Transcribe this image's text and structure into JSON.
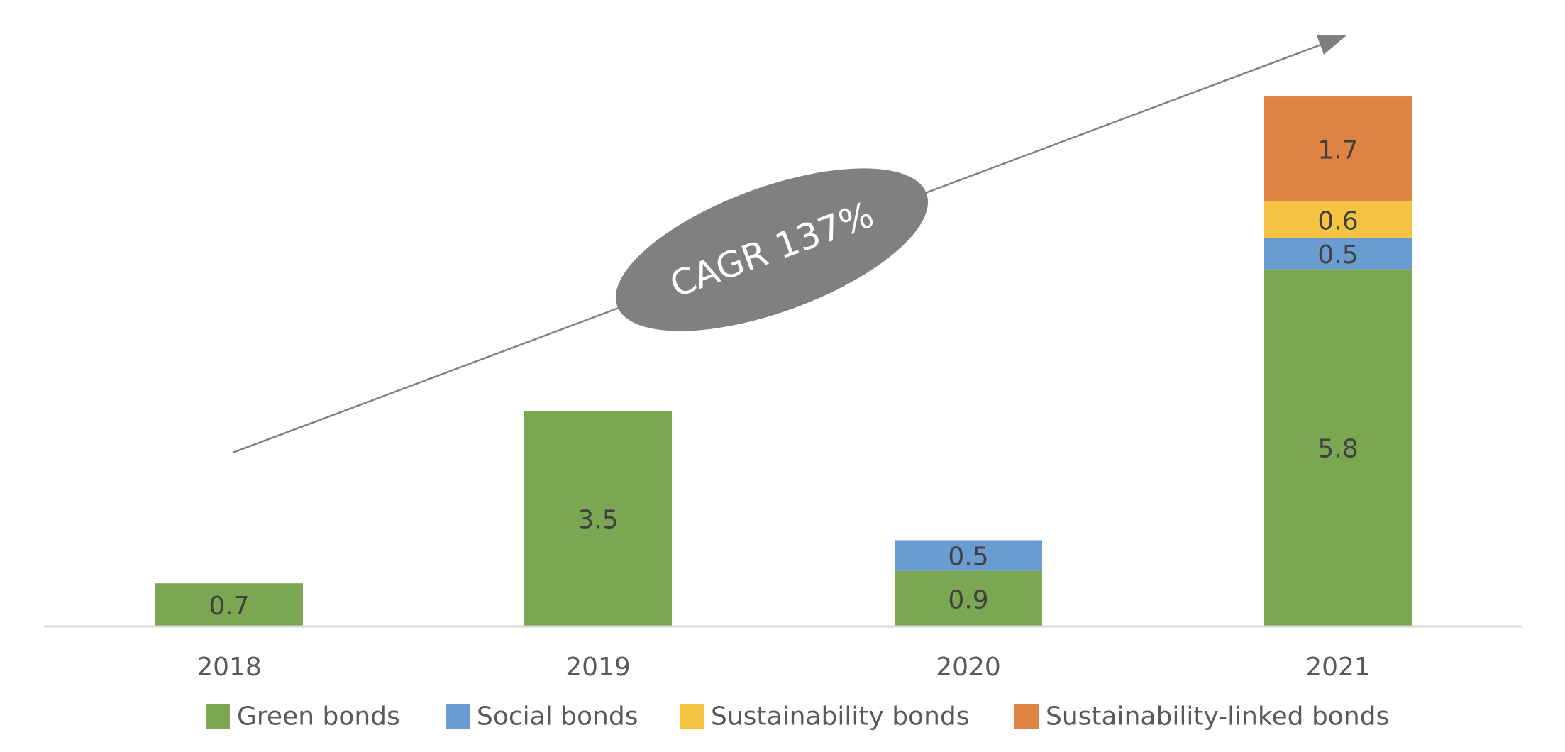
{
  "chart_data": {
    "type": "bar",
    "stacked": true,
    "categories": [
      "2018",
      "2019",
      "2020",
      "2021"
    ],
    "series": [
      {
        "name": "Green bonds",
        "values": [
          0.7,
          3.5,
          0.9,
          5.8
        ],
        "color": "#7BA752"
      },
      {
        "name": "Social bonds",
        "values": [
          0,
          0,
          0.5,
          0.5
        ],
        "color": "#6A9BD1"
      },
      {
        "name": "Sustainability bonds",
        "values": [
          0,
          0,
          0,
          0.6
        ],
        "color": "#F5C342"
      },
      {
        "name": "Sustainability-linked bonds",
        "values": [
          0,
          0,
          0,
          1.7
        ],
        "color": "#DE8344"
      }
    ],
    "title": "",
    "xlabel": "",
    "ylabel": "",
    "ylim": [
      0,
      8.9
    ],
    "grid": false,
    "legend_position": "bottom",
    "annotation": {
      "text": "CAGR 137%",
      "shape": "ellipse",
      "color": "#808080",
      "arrow_color": "#808080"
    },
    "axis_color": "#D9D9D9"
  }
}
